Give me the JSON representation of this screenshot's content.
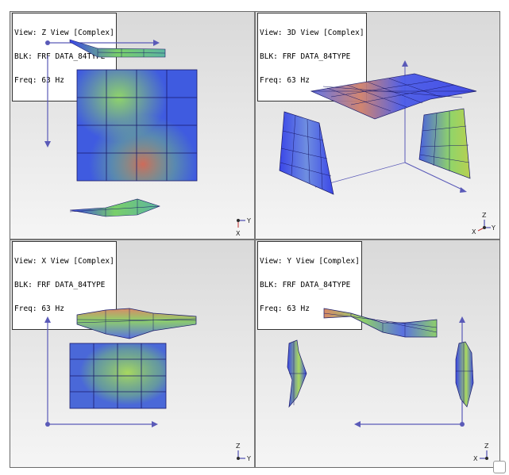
{
  "viewports": [
    {
      "view": "View: Z View [Complex]",
      "blk": "BLK: FRF DATA_84TYPE",
      "freq": "Freq: 63 Hz",
      "triad": [
        "Y",
        "X"
      ]
    },
    {
      "view": "View: 3D View [Complex]",
      "blk": "BLK: FRF DATA_84TYPE",
      "freq": "Freq: 63 Hz",
      "triad": [
        "Z",
        "X",
        "Y"
      ]
    },
    {
      "view": "View: X View [Complex]",
      "blk": "BLK: FRF DATA_84TYPE",
      "freq": "Freq: 63 Hz",
      "triad": [
        "Z",
        "Y"
      ]
    },
    {
      "view": "View: Y View [Complex]",
      "blk": "BLK: FRF DATA_84TYPE",
      "freq": "Freq: 63 Hz",
      "triad": [
        "Z",
        "X"
      ]
    }
  ],
  "colors": {
    "mesh_low": "#3a46e8",
    "mesh_mid": "#6fcf6a",
    "mesh_high": "#d86a5a",
    "axis": "#5a5ab8",
    "grid_line": "#1a1a6a"
  }
}
